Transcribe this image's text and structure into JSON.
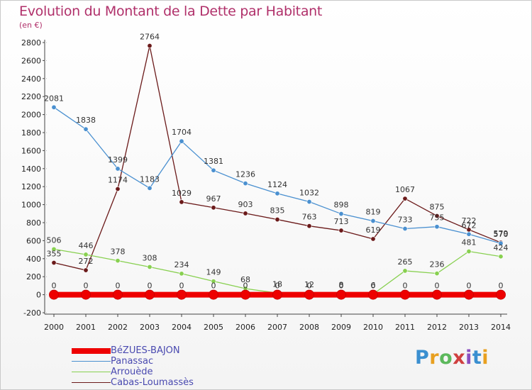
{
  "header": {
    "title": "Evolution du Montant de la Dette par Habitant",
    "unit": "(en €)"
  },
  "logo": {
    "text": "Proxiti",
    "colors": [
      "#3a8fd0",
      "#e8a020",
      "#5cb85c",
      "#d04040",
      "#8a4fc0",
      "#3a8fd0",
      "#e8a020"
    ]
  },
  "chart_data": {
    "type": "line",
    "title": "Evolution du Montant de la Dette par Habitant",
    "ylabel": "(en €)",
    "xlabel": "",
    "x": [
      "2000",
      "2001",
      "2002",
      "2003",
      "2004",
      "2005",
      "2006",
      "2007",
      "2008",
      "2009",
      "2010",
      "2011",
      "2012",
      "2013",
      "2014"
    ],
    "ylim": [
      -200,
      2800
    ],
    "yticks": [
      -200,
      0,
      200,
      400,
      600,
      800,
      1000,
      1200,
      1400,
      1600,
      1800,
      2000,
      2200,
      2400,
      2600,
      2800
    ],
    "grid": false,
    "legend_position": "bottom-left",
    "series": [
      {
        "name": "BéZUES-BAJON",
        "color": "#ee0000",
        "values": [
          0,
          0,
          0,
          0,
          0,
          0,
          0,
          0,
          0,
          0,
          0,
          0,
          0,
          0,
          0
        ],
        "labels": [
          "0",
          "0",
          "0",
          "0",
          "0",
          "0",
          "0",
          "0",
          "0",
          "0",
          "0",
          "0",
          "0",
          "0",
          "0"
        ]
      },
      {
        "name": "Panassac",
        "color": "#4a90d0",
        "values": [
          2081,
          1838,
          1399,
          1183,
          1704,
          1381,
          1236,
          1124,
          1032,
          898,
          819,
          733,
          755,
          672,
          570
        ],
        "labels": [
          "2081",
          "1838",
          "1399",
          "1183",
          "1704",
          "1381",
          "1236",
          "1124",
          "1032",
          "898",
          "819",
          "733",
          "755",
          "672",
          "570"
        ]
      },
      {
        "name": "Arrouède",
        "color": "#88d050",
        "values": [
          506,
          446,
          378,
          308,
          234,
          149,
          68,
          18,
          12,
          8,
          6,
          265,
          236,
          481,
          424
        ],
        "labels": [
          "506",
          "446",
          "378",
          "308",
          "234",
          "149",
          "68",
          "18",
          "12",
          "8",
          "6",
          "265",
          "236",
          "481",
          "424"
        ]
      },
      {
        "name": "Cabas-Loumassès",
        "color": "#6b1a1a",
        "values": [
          355,
          272,
          1174,
          2764,
          1029,
          967,
          903,
          835,
          763,
          713,
          619,
          1067,
          875,
          722,
          579
        ],
        "labels": [
          "355",
          "272",
          "1174",
          "2764",
          "1029",
          "967",
          "903",
          "835",
          "763",
          "713",
          "619",
          "1067",
          "875",
          "722",
          "579"
        ]
      }
    ]
  }
}
